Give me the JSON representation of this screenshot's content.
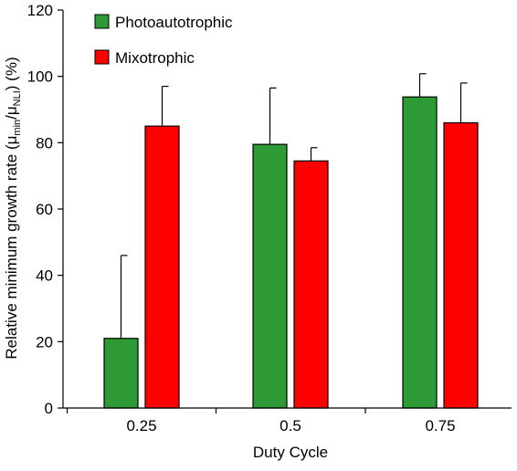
{
  "chart_data": {
    "type": "bar",
    "title": "",
    "categories": [
      "0.25",
      "0.5",
      "0.75"
    ],
    "series": [
      {
        "name": "Photoautotrophic",
        "color": "#2e9a36",
        "values": [
          21,
          79.5,
          93.8
        ],
        "errors": [
          25,
          17,
          7
        ]
      },
      {
        "name": "Mixotrophic",
        "color": "#ff0000",
        "values": [
          85,
          74.5,
          86
        ],
        "errors": [
          12,
          4,
          12
        ]
      }
    ],
    "xlabel": "Duty Cycle",
    "ylabel": {
      "prefix": "Relative minimum growth rate (",
      "mu1": "μ",
      "sub1": "min",
      "slash": "/",
      "mu2": "μ",
      "sub2": "NLI",
      "suffix": ") (%)"
    },
    "ylim": [
      0,
      120
    ],
    "yticks": [
      "0",
      "20",
      "40",
      "60",
      "80",
      "100",
      "120"
    ],
    "grid": false,
    "legend_position": "top-left"
  }
}
